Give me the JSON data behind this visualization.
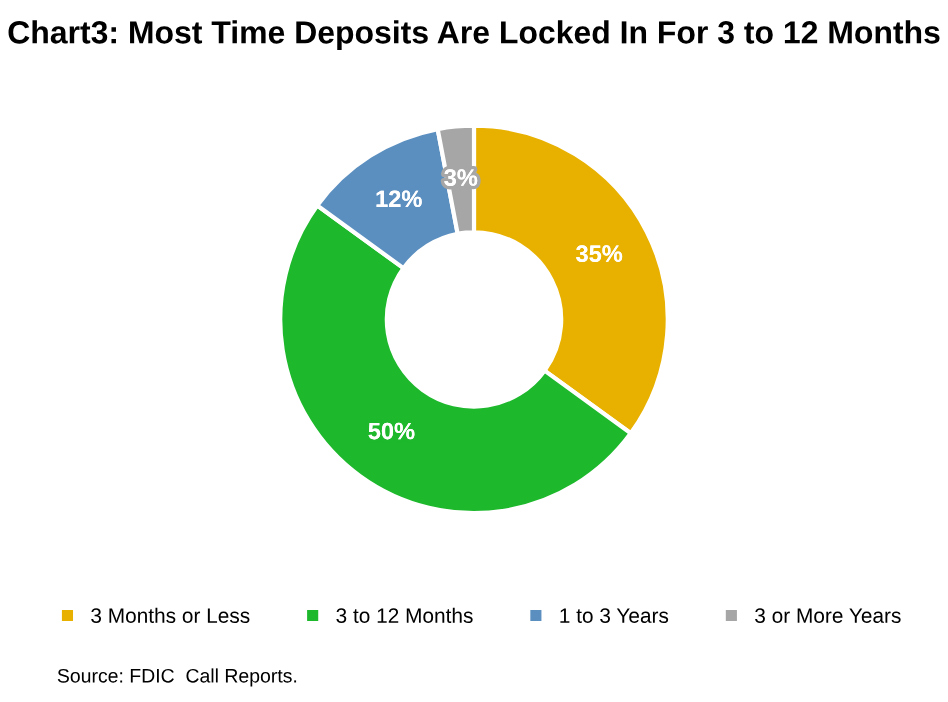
{
  "chart_data": {
    "type": "donut",
    "title": "Chart3: Most Time Deposits Are Locked In For 3 to 12 Months",
    "categories": [
      "3 Months or Less",
      "3 to 12 Months",
      "1 to 3 Years",
      "3 or More Years"
    ],
    "values": [
      35,
      50,
      12,
      3
    ],
    "colors": [
      "#e8b100",
      "#1db82c",
      "#5b8fc0",
      "#a6a6a6"
    ],
    "value_labels": [
      "35%",
      "50%",
      "12%",
      "3%"
    ],
    "legend": "bottom",
    "annotations": [
      "Source: FDIC  Call Reports."
    ]
  }
}
